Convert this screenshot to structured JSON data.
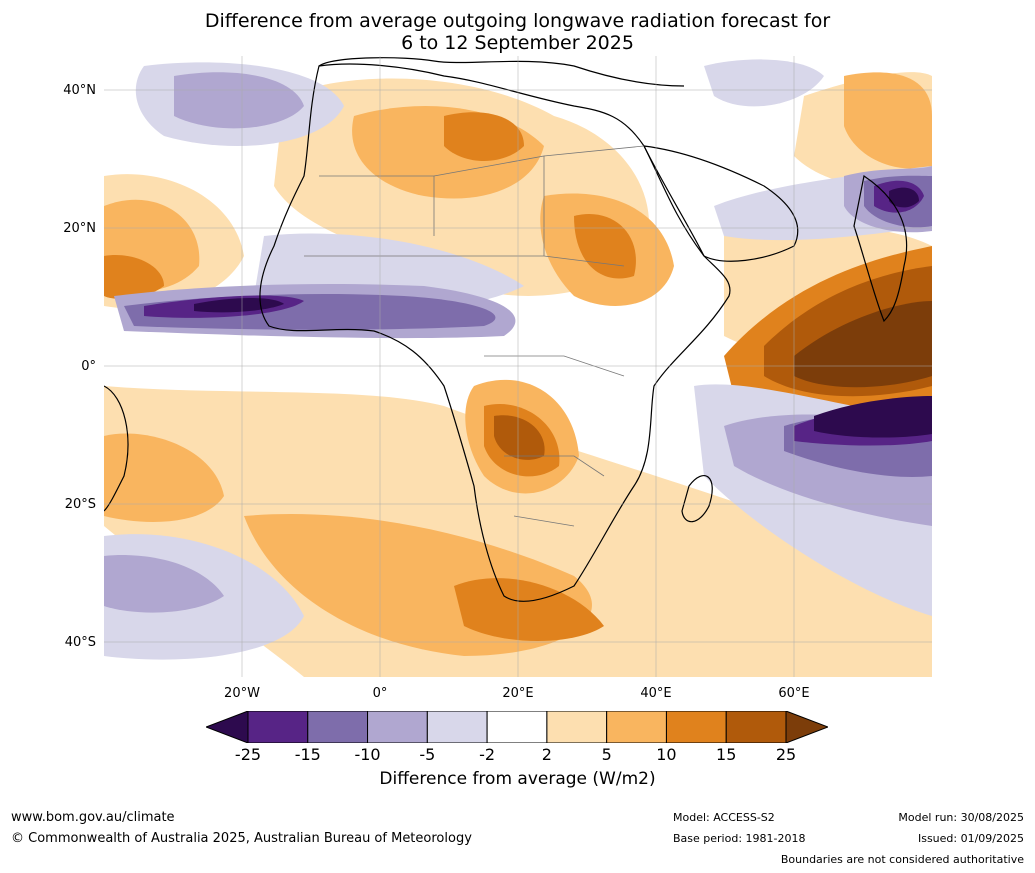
{
  "title_line1": "Difference from average outgoing longwave radiation forecast for",
  "title_line2": "6 to 12 September 2025",
  "lat_labels": [
    "40°N",
    "20°N",
    "0°",
    "20°S",
    "40°S"
  ],
  "lon_labels": [
    "20°W",
    "0°",
    "20°E",
    "40°E",
    "60°E"
  ],
  "colorbar": {
    "title": "Difference from average (W/m2)",
    "tick_labels": [
      "-25",
      "-15",
      "-10",
      "-5",
      "-2",
      "2",
      "5",
      "10",
      "15",
      "25"
    ],
    "colors": [
      "#2d0a4e",
      "#572486",
      "#7e6dab",
      "#b0a7d0",
      "#d8d7ea",
      "#ffffff",
      "#fddfb0",
      "#f9b55f",
      "#e0821d",
      "#b05a0b",
      "#7c3d0a"
    ]
  },
  "footer": {
    "website": "www.bom.gov.au/climate",
    "copyright": "© Commonwealth of Australia 2025, Australian Bureau of Meteorology",
    "model": "Model: ACCESS-S2",
    "base_period": "Base period: 1981-2018",
    "model_run": "Model run: 30/08/2025",
    "issued": "Issued: 01/09/2025",
    "disclaimer": "Boundaries are not considered authoritative"
  }
}
